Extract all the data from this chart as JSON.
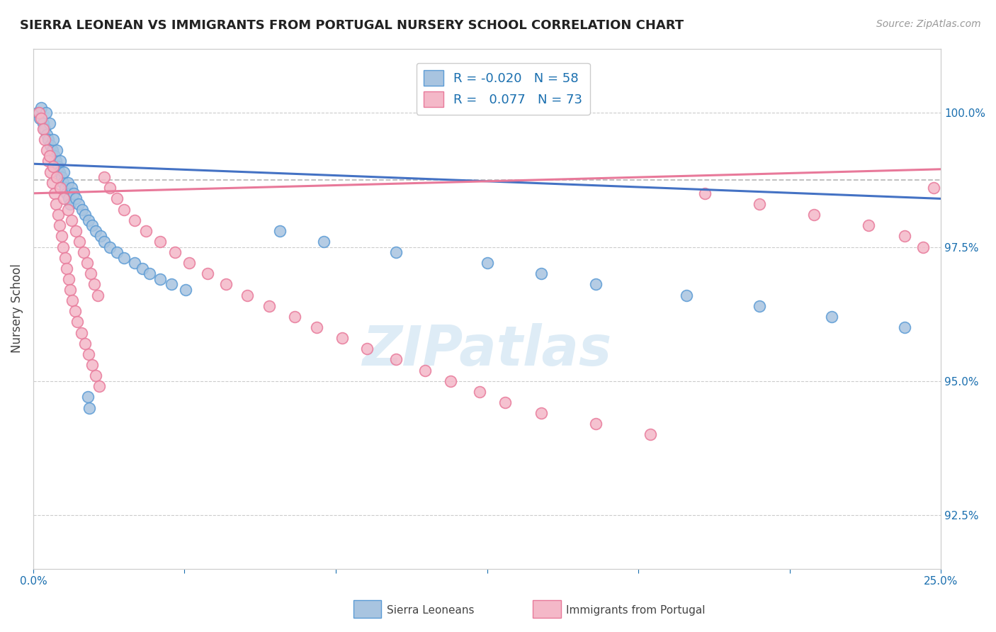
{
  "title": "SIERRA LEONEAN VS IMMIGRANTS FROM PORTUGAL NURSERY SCHOOL CORRELATION CHART",
  "source_text": "Source: ZipAtlas.com",
  "ylabel": "Nursery School",
  "xlim": [
    0.0,
    25.0
  ],
  "ylim": [
    91.5,
    101.2
  ],
  "yticks": [
    92.5,
    95.0,
    97.5,
    100.0
  ],
  "ytick_labels": [
    "92.5%",
    "95.0%",
    "97.5%",
    "100.0%"
  ],
  "color_blue": "#a8c4e0",
  "color_pink": "#f4b8c8",
  "color_blue_dark": "#5b9bd5",
  "color_pink_dark": "#e8799a",
  "trend_blue": "#4472c4",
  "trend_pink": "#e8799a",
  "dashed_color": "#aaaaaa",
  "watermark_color": "#c8e0f0",
  "sierra_x": [
    0.12,
    0.18,
    0.22,
    0.28,
    0.32,
    0.35,
    0.38,
    0.42,
    0.45,
    0.48,
    0.52,
    0.55,
    0.58,
    0.62,
    0.65,
    0.68,
    0.72,
    0.75,
    0.78,
    0.82,
    0.85,
    0.88,
    0.92,
    0.95,
    0.98,
    1.02,
    1.05,
    1.12,
    1.18,
    1.25,
    1.35,
    1.42,
    1.52,
    1.62,
    1.72,
    1.85,
    1.95,
    2.1,
    2.3,
    2.5,
    2.8,
    3.0,
    3.2,
    3.5,
    3.8,
    4.2,
    1.5,
    1.55,
    6.8,
    8.0,
    10.0,
    12.5,
    14.0,
    15.5,
    18.0,
    20.0,
    22.0,
    24.0
  ],
  "sierra_y": [
    100.0,
    99.9,
    100.1,
    99.8,
    99.7,
    100.0,
    99.6,
    99.5,
    99.8,
    99.4,
    99.3,
    99.5,
    99.2,
    99.1,
    99.3,
    99.0,
    98.9,
    99.1,
    98.8,
    98.7,
    98.9,
    98.6,
    98.5,
    98.7,
    98.4,
    98.3,
    98.6,
    98.5,
    98.4,
    98.3,
    98.2,
    98.1,
    98.0,
    97.9,
    97.8,
    97.7,
    97.6,
    97.5,
    97.4,
    97.3,
    97.2,
    97.1,
    97.0,
    96.9,
    96.8,
    96.7,
    94.7,
    94.5,
    97.8,
    97.6,
    97.4,
    97.2,
    97.0,
    96.8,
    96.6,
    96.4,
    96.2,
    96.0
  ],
  "portugal_x": [
    0.15,
    0.22,
    0.28,
    0.32,
    0.38,
    0.42,
    0.48,
    0.52,
    0.58,
    0.62,
    0.68,
    0.72,
    0.78,
    0.82,
    0.88,
    0.92,
    0.98,
    1.02,
    1.08,
    1.15,
    1.22,
    1.32,
    1.42,
    1.52,
    1.62,
    1.72,
    1.82,
    1.95,
    2.1,
    2.3,
    2.5,
    2.8,
    3.1,
    3.5,
    3.9,
    4.3,
    4.8,
    5.3,
    5.9,
    6.5,
    7.2,
    7.8,
    8.5,
    9.2,
    10.0,
    10.8,
    11.5,
    12.3,
    13.0,
    14.0,
    15.5,
    17.0,
    18.5,
    20.0,
    21.5,
    23.0,
    24.0,
    24.5,
    24.8,
    0.45,
    0.55,
    0.65,
    0.75,
    0.85,
    0.95,
    1.05,
    1.18,
    1.28,
    1.38,
    1.48,
    1.58,
    1.68,
    1.78
  ],
  "portugal_y": [
    100.0,
    99.9,
    99.7,
    99.5,
    99.3,
    99.1,
    98.9,
    98.7,
    98.5,
    98.3,
    98.1,
    97.9,
    97.7,
    97.5,
    97.3,
    97.1,
    96.9,
    96.7,
    96.5,
    96.3,
    96.1,
    95.9,
    95.7,
    95.5,
    95.3,
    95.1,
    94.9,
    98.8,
    98.6,
    98.4,
    98.2,
    98.0,
    97.8,
    97.6,
    97.4,
    97.2,
    97.0,
    96.8,
    96.6,
    96.4,
    96.2,
    96.0,
    95.8,
    95.6,
    95.4,
    95.2,
    95.0,
    94.8,
    94.6,
    94.4,
    94.2,
    94.0,
    98.5,
    98.3,
    98.1,
    97.9,
    97.7,
    97.5,
    98.6,
    99.2,
    99.0,
    98.8,
    98.6,
    98.4,
    98.2,
    98.0,
    97.8,
    97.6,
    97.4,
    97.2,
    97.0,
    96.8,
    96.6
  ]
}
